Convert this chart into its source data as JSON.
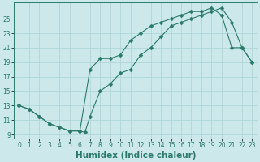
{
  "xlabel": "Humidex (Indice chaleur)",
  "line1_x": [
    0,
    1,
    2,
    3,
    4,
    5,
    6,
    6.5,
    7,
    8,
    9,
    10,
    11,
    12,
    13,
    14,
    15,
    16,
    17,
    18,
    19,
    20,
    21,
    22,
    23
  ],
  "line1_y": [
    13,
    12.5,
    11.5,
    10.5,
    10,
    9.5,
    9.5,
    9.3,
    11.5,
    15,
    16,
    17.5,
    18,
    20,
    21,
    22.5,
    24,
    24.5,
    25,
    25.5,
    26,
    26.5,
    24.5,
    21,
    19
  ],
  "line2_x": [
    0,
    1,
    2,
    3,
    4,
    5,
    6,
    7,
    8,
    9,
    10,
    11,
    12,
    13,
    14,
    15,
    16,
    17,
    18,
    19,
    20,
    21,
    22,
    23
  ],
  "line2_y": [
    13,
    12.5,
    11.5,
    10.5,
    10,
    9.5,
    9.5,
    18,
    19.5,
    19.5,
    20,
    22,
    23,
    24,
    24.5,
    25,
    25.5,
    26,
    26,
    26.5,
    25.5,
    21,
    21,
    19
  ],
  "line_color": "#2a7a6a",
  "bg_color": "#cce8ea",
  "grid_color": "#a8d4d6",
  "xlim": [
    -0.5,
    23.5
  ],
  "ylim": [
    8.5,
    27.2
  ],
  "yticks": [
    9,
    11,
    13,
    15,
    17,
    19,
    21,
    23,
    25
  ],
  "xticks": [
    0,
    1,
    2,
    3,
    4,
    5,
    6,
    7,
    8,
    9,
    10,
    11,
    12,
    13,
    14,
    15,
    16,
    17,
    18,
    19,
    20,
    21,
    22,
    23
  ],
  "tick_fontsize": 5.5,
  "xlabel_fontsize": 7.5,
  "markersize": 2.5
}
